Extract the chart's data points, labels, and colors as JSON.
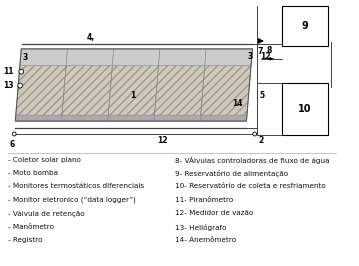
{
  "bg_color": "#ffffff",
  "legend_left": [
    "- Coletor solar plano",
    "- Moto bomba",
    "- Monitores termostáticos diferenciais",
    "- Monitor eletronico (“data logger”)",
    "- Válvula de retenção",
    "- Manômetro",
    "- Registro"
  ],
  "legend_right": [
    "8- VÁlvulas controladoras de fluxo de água",
    "9- Reservatório de alimentação",
    "10- Reservatório de coleta e resfriamento",
    "11- Piranômetro",
    "12- Medidor de vazão",
    "13- Heliógrafo",
    "14- Anemômetro"
  ]
}
